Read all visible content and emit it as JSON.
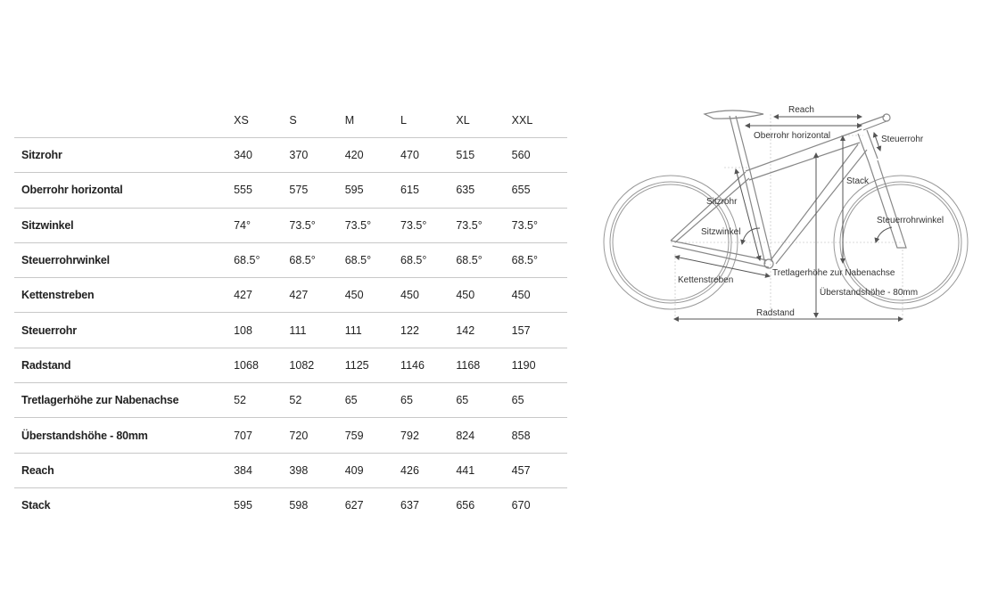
{
  "table": {
    "sizes": [
      "XS",
      "S",
      "M",
      "L",
      "XL",
      "XXL"
    ],
    "rows": [
      {
        "label": "Sitzrohr",
        "values": [
          "340",
          "370",
          "420",
          "470",
          "515",
          "560"
        ]
      },
      {
        "label": "Oberrohr horizontal",
        "values": [
          "555",
          "575",
          "595",
          "615",
          "635",
          "655"
        ]
      },
      {
        "label": "Sitzwinkel",
        "values": [
          "74°",
          "73.5°",
          "73.5°",
          "73.5°",
          "73.5°",
          "73.5°"
        ]
      },
      {
        "label": "Steuerrohrwinkel",
        "values": [
          "68.5°",
          "68.5°",
          "68.5°",
          "68.5°",
          "68.5°",
          "68.5°"
        ]
      },
      {
        "label": "Kettenstreben",
        "values": [
          "427",
          "427",
          "450",
          "450",
          "450",
          "450"
        ]
      },
      {
        "label": "Steuerrohr",
        "values": [
          "108",
          "111",
          "111",
          "122",
          "142",
          "157"
        ]
      },
      {
        "label": "Radstand",
        "values": [
          "1068",
          "1082",
          "1125",
          "1146",
          "1168",
          "1190"
        ]
      },
      {
        "label": "Tretlagerhöhe zur Nabenachse",
        "values": [
          "52",
          "52",
          "65",
          "65",
          "65",
          "65"
        ]
      },
      {
        "label": "Überstandshöhe - 80mm",
        "values": [
          "707",
          "720",
          "759",
          "792",
          "824",
          "858"
        ]
      },
      {
        "label": "Reach",
        "values": [
          "384",
          "398",
          "409",
          "426",
          "441",
          "457"
        ]
      },
      {
        "label": "Stack",
        "values": [
          "595",
          "598",
          "627",
          "637",
          "656",
          "670"
        ]
      }
    ]
  },
  "diagram": {
    "labels": {
      "reach": "Reach",
      "oberrohr": "Oberrohr horizontal",
      "steuerrohr": "Steuerrohr",
      "stack": "Stack",
      "sitzrohr": "Sitzrohr",
      "sitzwinkel": "Sitzwinkel",
      "steuerrohrwinkel": "Steuerrohrwinkel",
      "tretlager": "Tretlagerhöhe zur Nabenachse",
      "kettenstreben": "Kettenstreben",
      "ueberstand": "Überstandshöhe - 80mm",
      "radstand": "Radstand"
    }
  }
}
